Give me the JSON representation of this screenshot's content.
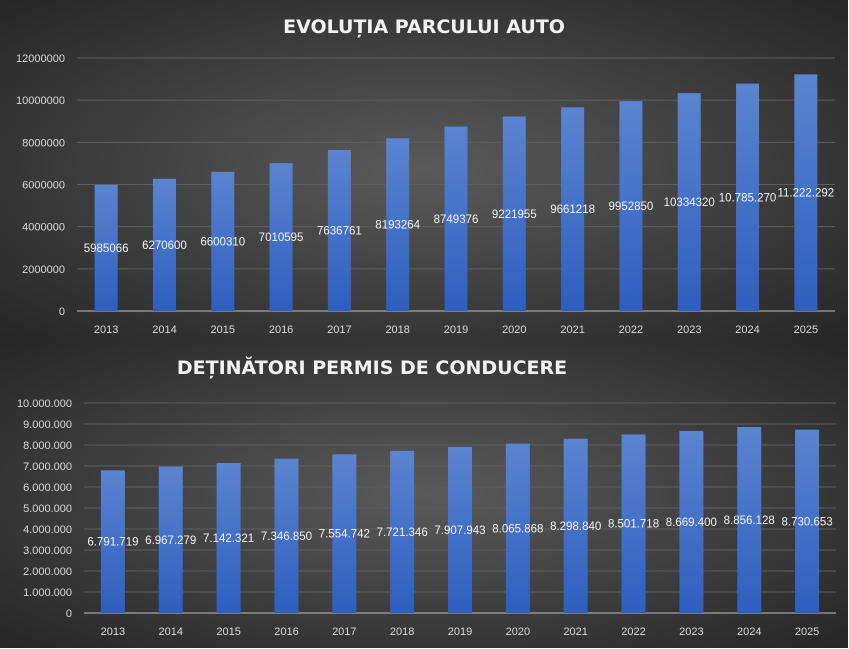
{
  "colors": {
    "bar_top": "#5b84d0",
    "bar_bottom": "#2e5fbf",
    "background_center": "#5a5a5a",
    "background_edge": "#262626",
    "grid": "#5e5e5e",
    "text": "#d9d9d9"
  },
  "chart_data": [
    {
      "type": "bar",
      "title": "EVOLUȚIA PARCULUI AUTO",
      "categories": [
        "2013",
        "2014",
        "2015",
        "2016",
        "2017",
        "2018",
        "2019",
        "2020",
        "2021",
        "2022",
        "2023",
        "2024",
        "2025"
      ],
      "values": [
        5985066,
        6270600,
        6600310,
        7010595,
        7636761,
        8193264,
        8749376,
        9221955,
        9661218,
        9952850,
        10334320,
        10785270,
        11222292
      ],
      "data_labels": [
        "5985066",
        "6270600",
        "6600310",
        "7010595",
        "7636761",
        "8193264",
        "8749376",
        "9221955",
        "9661218",
        "9952850",
        "10334320",
        "10.785.270",
        "11.222.292"
      ],
      "ylim": [
        0,
        12000000
      ],
      "yticks": [
        "0",
        "2000000",
        "4000000",
        "6000000",
        "8000000",
        "10000000",
        "12000000"
      ],
      "ytick_values": [
        0,
        2000000,
        4000000,
        6000000,
        8000000,
        10000000,
        12000000
      ],
      "grid": true,
      "legend": "none"
    },
    {
      "type": "bar",
      "title": "DEȚINĂTORI PERMIS DE CONDUCERE",
      "categories": [
        "2013",
        "2014",
        "2015",
        "2016",
        "2017",
        "2018",
        "2019",
        "2020",
        "2021",
        "2022",
        "2023",
        "2024",
        "2025"
      ],
      "values": [
        6791719,
        6967279,
        7142321,
        7346850,
        7554742,
        7721346,
        7907943,
        8065868,
        8298840,
        8501718,
        8669400,
        8856128,
        8730653
      ],
      "data_labels": [
        "6.791.719",
        "6.967.279",
        "7.142.321",
        "7.346.850",
        "7.554.742",
        "7.721.346",
        "7.907.943",
        "8.065.868",
        "8.298.840",
        "8.501.718",
        "8.669.400",
        "8.856.128",
        "8.730.653"
      ],
      "ylim": [
        0,
        10000000
      ],
      "yticks": [
        "0",
        "1.000.000",
        "2.000.000",
        "3.000.000",
        "4.000.000",
        "5.000.000",
        "6.000.000",
        "7.000.000",
        "8.000.000",
        "9.000.000",
        "10.000.000"
      ],
      "ytick_values": [
        0,
        1000000,
        2000000,
        3000000,
        4000000,
        5000000,
        6000000,
        7000000,
        8000000,
        9000000,
        10000000
      ],
      "grid": true,
      "legend": "none"
    }
  ]
}
